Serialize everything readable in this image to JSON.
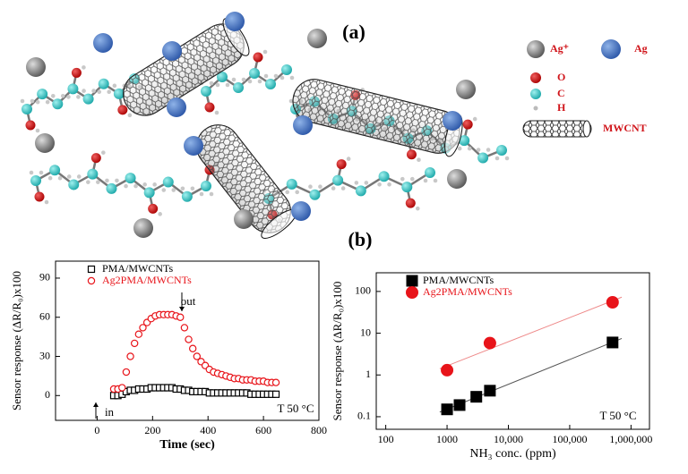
{
  "panel_labels": [
    "(a)",
    "(b)"
  ],
  "legend": [
    "Ag⁺",
    "Ag",
    "O",
    "C",
    "H",
    "MWCNT"
  ],
  "chart_data": [
    {
      "type": "scatter",
      "xlabel": "Time (sec)",
      "ylabel": "Sensor response (ΔR/R₀)x100",
      "xlim": [
        -150,
        800
      ],
      "xticks": [
        0,
        200,
        400,
        600,
        800
      ],
      "ylim": [
        -19,
        103
      ],
      "yticks": [
        0,
        30,
        60,
        90
      ],
      "legend": "upper left",
      "series": [
        {
          "name": "PMA/MWCNTs",
          "color": "#000000",
          "marker": "square-open",
          "x": [
            60,
            75,
            90,
            105,
            120,
            135,
            150,
            165,
            180,
            195,
            210,
            225,
            240,
            255,
            270,
            285,
            300,
            315,
            330,
            345,
            360,
            375,
            390,
            405,
            420,
            435,
            450,
            465,
            480,
            495,
            510,
            525,
            540,
            555,
            570,
            585,
            600,
            615,
            630,
            645
          ],
          "values": [
            0,
            0,
            1,
            3,
            4,
            4,
            5,
            5,
            5,
            6,
            6,
            6,
            6,
            6,
            6,
            5,
            5,
            4,
            4,
            3,
            3,
            3,
            3,
            2,
            2,
            2,
            2,
            2,
            2,
            2,
            2,
            2,
            2,
            1,
            1,
            1,
            1,
            1,
            1,
            1
          ]
        },
        {
          "name": "Ag2PMA/MWCNTs",
          "color": "#e8141a",
          "marker": "circle-open",
          "x": [
            60,
            75,
            90,
            105,
            120,
            135,
            150,
            165,
            180,
            195,
            210,
            225,
            240,
            255,
            270,
            285,
            300,
            315,
            330,
            345,
            360,
            375,
            390,
            405,
            420,
            435,
            450,
            465,
            480,
            495,
            510,
            525,
            540,
            555,
            570,
            585,
            600,
            615,
            630,
            645
          ],
          "values": [
            5,
            5,
            6,
            18,
            30,
            40,
            47,
            52,
            56,
            59,
            61,
            62,
            62,
            62,
            62,
            61,
            60,
            52,
            43,
            36,
            30,
            26,
            23,
            20,
            18,
            17,
            16,
            15,
            14,
            13,
            13,
            12,
            12,
            12,
            11,
            11,
            11,
            10,
            10,
            10
          ]
        }
      ],
      "annotations": [
        "out",
        "in",
        "T 50 °C"
      ]
    },
    {
      "type": "scatter",
      "xlabel": "NH₃ conc. (ppm)",
      "ylabel": "Sensor response (ΔR/R₀)x100",
      "xlog": true,
      "ylog": true,
      "fit": true,
      "xlim": [
        70,
        2000000
      ],
      "xticks": [
        100,
        1000,
        {
          "value": 10000,
          "label": "10,000"
        },
        {
          "value": 100000,
          "label": "100,000"
        },
        {
          "value": 1000000,
          "label": "1,000,000"
        }
      ],
      "ylim": [
        0.05,
        280
      ],
      "yticks": [
        0.1,
        1,
        10,
        100
      ],
      "legend": "upper left",
      "series": [
        {
          "name": "PMA/MWCNTs",
          "color": "#000000",
          "marker": "square",
          "x": [
            1000,
            1600,
            3000,
            5000,
            500000
          ],
          "values": [
            0.15,
            0.19,
            0.3,
            0.42,
            6
          ]
        },
        {
          "name": "Ag2PMA/MWCNTs",
          "color": "#e8141a",
          "marker": "circle",
          "x": [
            1000,
            5000,
            500000
          ],
          "values": [
            1.3,
            5.8,
            55
          ]
        }
      ],
      "annotations": [
        "T 50 °C"
      ]
    }
  ]
}
